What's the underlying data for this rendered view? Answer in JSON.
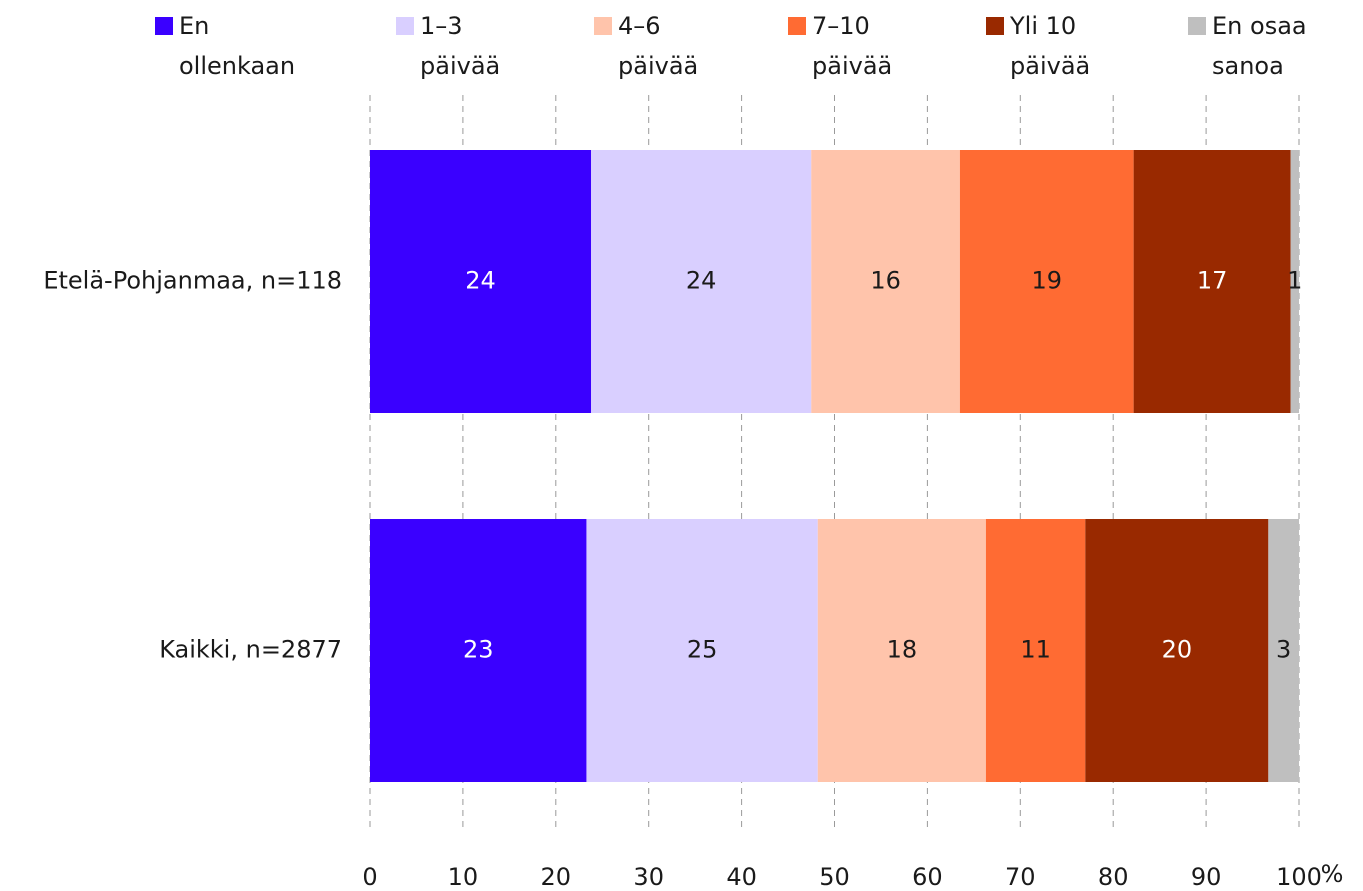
{
  "chart_data": {
    "type": "stacked_bar_horizontal",
    "categories": [
      "Etelä-Pohjanmaa, n=118",
      "Kaikki, n=2877"
    ],
    "series": [
      {
        "name": "En ollenkaan",
        "color": "#3a00ff",
        "values": [
          23.8,
          23.3
        ],
        "value_labels": [
          "24",
          "23"
        ]
      },
      {
        "name": "1–3 päivää",
        "color": "#d9cfff",
        "values": [
          23.7,
          24.9
        ],
        "value_labels": [
          "24",
          "25"
        ]
      },
      {
        "name": "4–6 päivää",
        "color": "#ffc4ab",
        "values": [
          16.0,
          18.1
        ],
        "value_labels": [
          "16",
          "18"
        ]
      },
      {
        "name": "7–10 päivää",
        "color": "#ff6b33",
        "values": [
          18.7,
          10.7
        ],
        "value_labels": [
          "19",
          "11"
        ]
      },
      {
        "name": "Yli 10 päivää",
        "color": "#992900",
        "values": [
          16.9,
          19.7
        ],
        "value_labels": [
          "17",
          "20"
        ]
      },
      {
        "name": "En osaa sanoa",
        "color": "#bfbfbf",
        "values": [
          0.9,
          3.3
        ],
        "value_labels": [
          "1",
          "3"
        ]
      }
    ],
    "x_label": "%",
    "xlim": [
      0,
      100
    ],
    "xticks": [
      0,
      10,
      20,
      30,
      40,
      50,
      60,
      70,
      80,
      90,
      100
    ],
    "grid": true,
    "legend": "top"
  }
}
